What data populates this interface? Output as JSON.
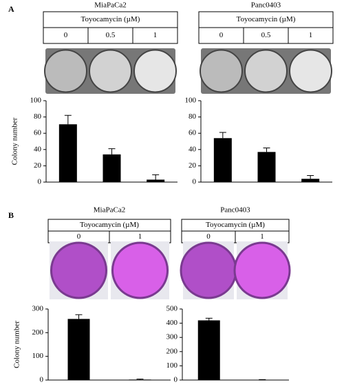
{
  "panel_labels": [
    "A",
    "B"
  ],
  "chart_data": [
    {
      "type": "bar",
      "title": "MiaPaCa2",
      "header": "Toyocamycin (µM)",
      "categories": [
        "0",
        "0.5",
        "1"
      ],
      "values": [
        71,
        34,
        3
      ],
      "errors": [
        11,
        7,
        6
      ],
      "color": "#000000",
      "ylabel": "Colony number",
      "ylim": [
        0,
        100
      ],
      "yticks": [
        0,
        20,
        40,
        60,
        80,
        100
      ],
      "grid": false
    },
    {
      "type": "bar",
      "title": "Panc0403",
      "header": "Toyocamycin (µM)",
      "categories": [
        "0",
        "0.5",
        "1"
      ],
      "values": [
        54,
        37,
        4
      ],
      "errors": [
        7,
        5,
        4
      ],
      "color": "#000000",
      "ylim": [
        0,
        100
      ],
      "yticks": [
        0,
        20,
        40,
        60,
        80,
        100
      ],
      "grid": false
    },
    {
      "type": "bar",
      "title": "MiaPaCa2",
      "header": "Toyocamycin (µM)",
      "categories": [
        "0",
        "1"
      ],
      "values": [
        258,
        2
      ],
      "errors": [
        18,
        2
      ],
      "color": "#000000",
      "ylabel": "Colony number",
      "ylim": [
        0,
        300
      ],
      "yticks": [
        0,
        100,
        200,
        300
      ],
      "grid": false
    },
    {
      "type": "bar",
      "title": "Panc0403",
      "header": "Toyocamycin (µM)",
      "categories": [
        "0",
        "1"
      ],
      "values": [
        420,
        2
      ],
      "errors": [
        15,
        1
      ],
      "color": "#000000",
      "ylim": [
        0,
        500
      ],
      "yticks": [
        0,
        100,
        200,
        300,
        400,
        500
      ],
      "grid": false
    }
  ]
}
